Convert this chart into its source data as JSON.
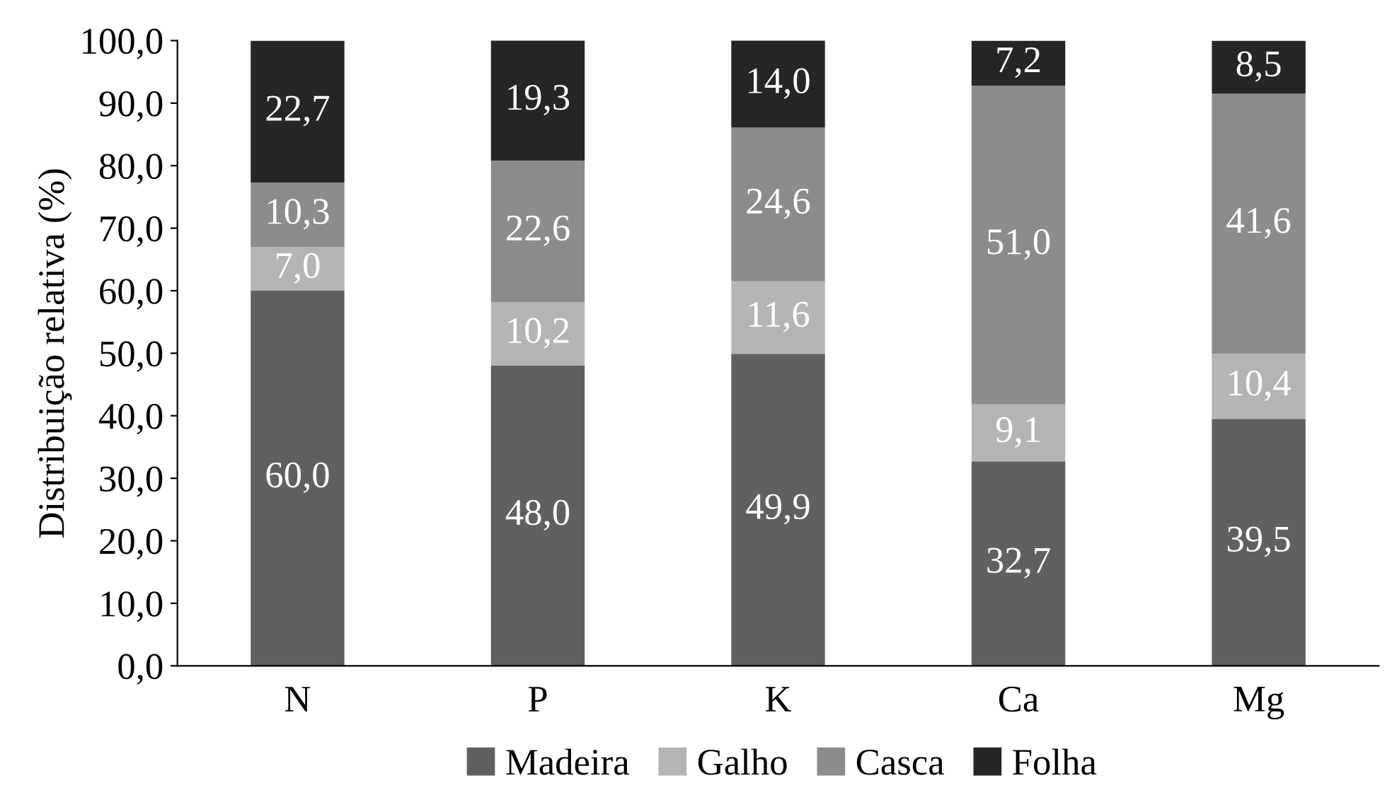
{
  "chart_data": {
    "type": "bar",
    "stacked": true,
    "ylabel": "Distribuição relativa (%)",
    "categories": [
      "N",
      "P",
      "K",
      "Ca",
      "Mg"
    ],
    "series": [
      {
        "name": "Madeira",
        "color": "#606060",
        "values": [
          60.0,
          48.0,
          49.9,
          32.7,
          39.5
        ],
        "value_labels": [
          "60,0",
          "48,0",
          "49,9",
          "32,7",
          "39,5"
        ]
      },
      {
        "name": "Galho",
        "color": "#b4b4b4",
        "values": [
          7.0,
          10.2,
          11.6,
          9.1,
          10.4
        ],
        "value_labels": [
          "7,0",
          "10,2",
          "11,6",
          "9,1",
          "10,4"
        ]
      },
      {
        "name": "Casca",
        "color": "#8c8c8c",
        "values": [
          10.3,
          22.6,
          24.6,
          51.0,
          41.6
        ],
        "value_labels": [
          "10,3",
          "22,6",
          "24,6",
          "51,0",
          "41,6"
        ]
      },
      {
        "name": "Folha",
        "color": "#262626",
        "values": [
          22.7,
          19.3,
          14.0,
          7.2,
          8.5
        ],
        "value_labels": [
          "22,7",
          "19,3",
          "14,0",
          "7,2",
          "8,5"
        ]
      }
    ],
    "ylim": [
      0,
      100
    ],
    "yticks": [
      {
        "value": 0,
        "label": "0,0"
      },
      {
        "value": 10,
        "label": "10,0"
      },
      {
        "value": 20,
        "label": "20,0"
      },
      {
        "value": 30,
        "label": "30,0"
      },
      {
        "value": 40,
        "label": "40,0"
      },
      {
        "value": 50,
        "label": "50,0"
      },
      {
        "value": 60,
        "label": "60,0"
      },
      {
        "value": 70,
        "label": "70,0"
      },
      {
        "value": 80,
        "label": "80,0"
      },
      {
        "value": 90,
        "label": "90,0"
      },
      {
        "value": 100,
        "label": "100,0"
      }
    ],
    "grid": false,
    "legend": "bottom"
  }
}
